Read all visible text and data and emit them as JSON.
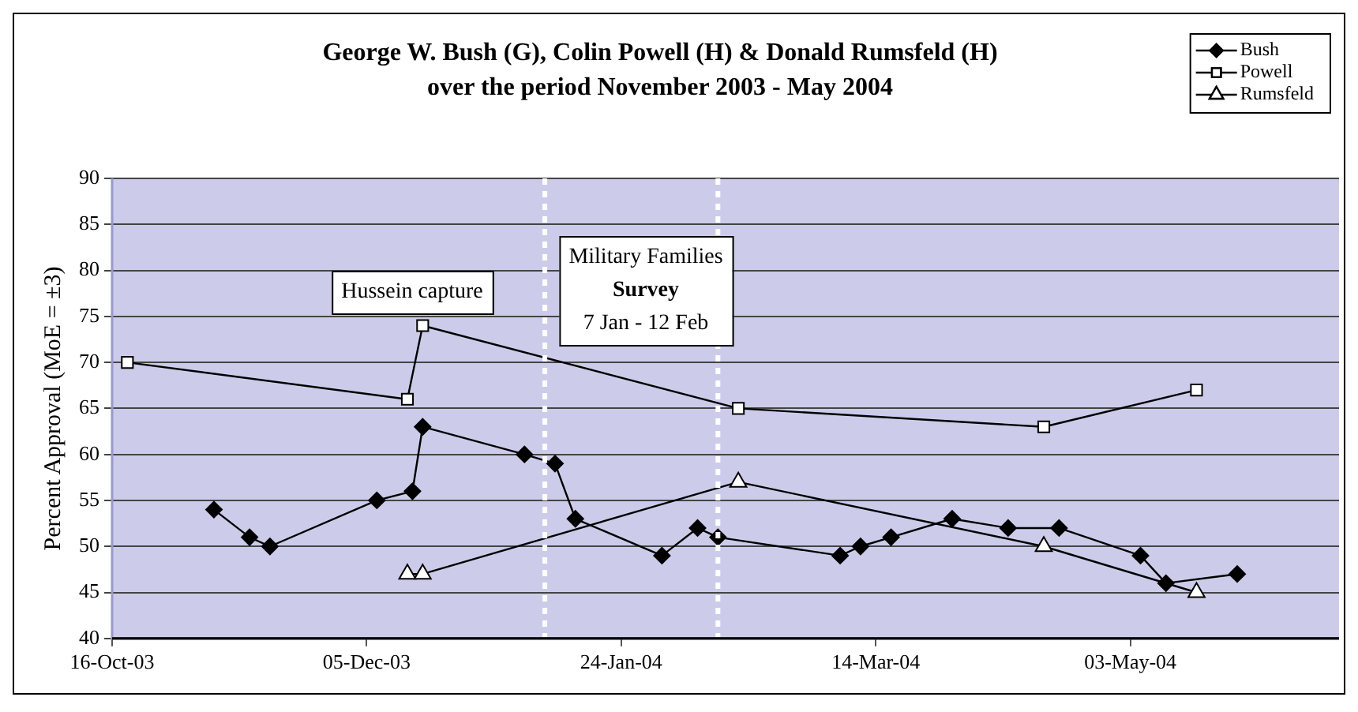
{
  "chart_data": {
    "type": "line",
    "title": "George W. Bush (G), Colin Powell (H) & Donald Rumsfeld (H)\nover the period November 2003 - May 2004",
    "ylabel": "Percent Approval (MoE = ±3)",
    "series": [
      {
        "name": "Bush",
        "color": "#000000",
        "marker": "diamond",
        "x": [
          "2003-11-05",
          "2003-11-12",
          "2003-11-16",
          "2003-12-07",
          "2003-12-14",
          "2003-12-16",
          "2004-01-05",
          "2004-01-11",
          "2004-01-15",
          "2004-02-01",
          "2004-02-08",
          "2004-02-12",
          "2004-03-07",
          "2004-03-11",
          "2004-03-17",
          "2004-03-29",
          "2004-04-09",
          "2004-04-19",
          "2004-05-05",
          "2004-05-10",
          "2004-05-24"
        ],
        "values": [
          54,
          51,
          50,
          55,
          56,
          63,
          60,
          59,
          53,
          49,
          52,
          51,
          49,
          50,
          51,
          53,
          52,
          52,
          49,
          46,
          47
        ]
      },
      {
        "name": "Powell",
        "color": "#000000",
        "marker": "square",
        "x": [
          "2003-10-19",
          "2003-12-13",
          "2003-12-16",
          "2004-02-16",
          "2004-04-16",
          "2004-05-16"
        ],
        "values": [
          70,
          66,
          74,
          65,
          63,
          67
        ]
      },
      {
        "name": "Rumsfeld",
        "color": "#000000",
        "marker": "triangle",
        "x": [
          "2003-12-13",
          "2003-12-16",
          "2004-02-16",
          "2004-04-16",
          "2004-05-16"
        ],
        "values": [
          47,
          47,
          57,
          50,
          45
        ]
      }
    ],
    "xlim": [
      "2003-10-16",
      "2004-06-13"
    ],
    "xticks": [
      {
        "value": "2003-10-16",
        "label": "16-Oct-03"
      },
      {
        "value": "2003-12-05",
        "label": "05-Dec-03"
      },
      {
        "value": "2004-01-24",
        "label": "24-Jan-04"
      },
      {
        "value": "2004-03-14",
        "label": "14-Mar-04"
      },
      {
        "value": "2004-05-03",
        "label": "03-May-04"
      }
    ],
    "ylim": [
      40,
      90
    ],
    "yticks": [
      40,
      45,
      50,
      55,
      60,
      65,
      70,
      75,
      80,
      85,
      90
    ],
    "grid": "y",
    "legend": "top right",
    "line_style": "solid",
    "ref_lines": [
      {
        "axis": "x",
        "value": "2004-01-09",
        "color": "#ffffff",
        "line_style": "dotted"
      },
      {
        "axis": "x",
        "value": "2004-02-12",
        "color": "#ffffff",
        "line_style": "dotted"
      }
    ],
    "annotations": [
      "Hussein capture",
      "Military Families\nSurvey\n7 Jan - 12 Feb"
    ]
  }
}
